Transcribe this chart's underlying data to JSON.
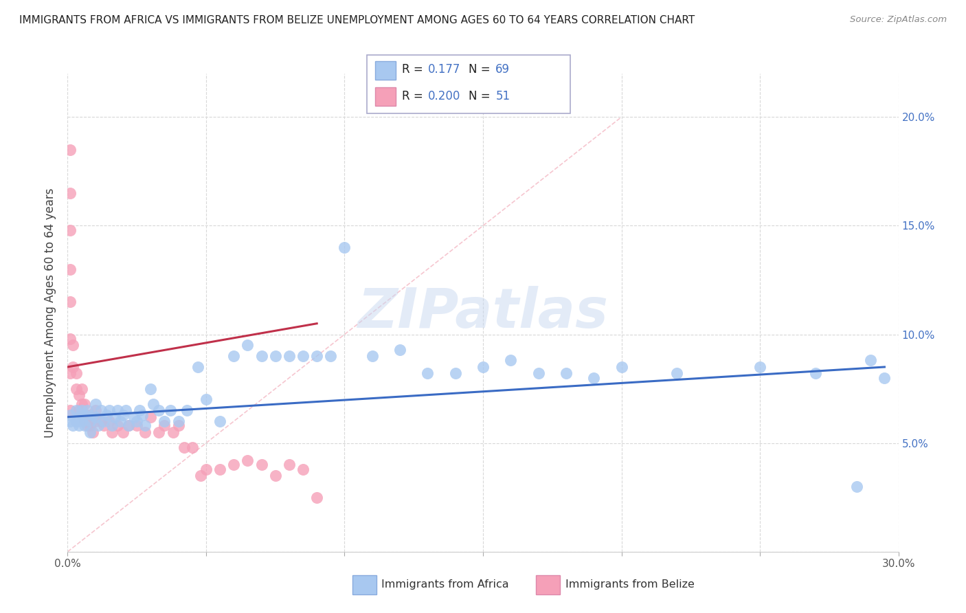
{
  "title": "IMMIGRANTS FROM AFRICA VS IMMIGRANTS FROM BELIZE UNEMPLOYMENT AMONG AGES 60 TO 64 YEARS CORRELATION CHART",
  "source": "Source: ZipAtlas.com",
  "ylabel": "Unemployment Among Ages 60 to 64 years",
  "xlabel_africa": "Immigrants from Africa",
  "xlabel_belize": "Immigrants from Belize",
  "xlim": [
    0.0,
    0.3
  ],
  "ylim": [
    0.0,
    0.22
  ],
  "R_africa": 0.177,
  "N_africa": 69,
  "R_belize": 0.2,
  "N_belize": 51,
  "africa_color": "#a8c8f0",
  "belize_color": "#f5a0b8",
  "trendline_africa_color": "#3a6bc4",
  "trendline_belize_color": "#c0304a",
  "africa_scatter_x": [
    0.001,
    0.001,
    0.002,
    0.003,
    0.003,
    0.004,
    0.004,
    0.005,
    0.005,
    0.006,
    0.006,
    0.007,
    0.008,
    0.008,
    0.009,
    0.01,
    0.01,
    0.011,
    0.012,
    0.013,
    0.014,
    0.015,
    0.016,
    0.017,
    0.018,
    0.019,
    0.02,
    0.021,
    0.022,
    0.024,
    0.025,
    0.026,
    0.027,
    0.028,
    0.03,
    0.031,
    0.033,
    0.035,
    0.037,
    0.04,
    0.043,
    0.047,
    0.05,
    0.055,
    0.06,
    0.065,
    0.07,
    0.075,
    0.08,
    0.085,
    0.09,
    0.095,
    0.1,
    0.11,
    0.12,
    0.13,
    0.14,
    0.15,
    0.16,
    0.17,
    0.18,
    0.19,
    0.2,
    0.22,
    0.25,
    0.27,
    0.285,
    0.29,
    0.295
  ],
  "africa_scatter_y": [
    0.063,
    0.06,
    0.058,
    0.065,
    0.06,
    0.062,
    0.058,
    0.065,
    0.06,
    0.063,
    0.058,
    0.065,
    0.06,
    0.055,
    0.063,
    0.062,
    0.068,
    0.058,
    0.065,
    0.06,
    0.063,
    0.065,
    0.058,
    0.062,
    0.065,
    0.06,
    0.063,
    0.065,
    0.058,
    0.062,
    0.06,
    0.065,
    0.063,
    0.058,
    0.075,
    0.068,
    0.065,
    0.06,
    0.065,
    0.06,
    0.065,
    0.085,
    0.07,
    0.06,
    0.09,
    0.095,
    0.09,
    0.09,
    0.09,
    0.09,
    0.09,
    0.09,
    0.14,
    0.09,
    0.093,
    0.082,
    0.082,
    0.085,
    0.088,
    0.082,
    0.082,
    0.08,
    0.085,
    0.082,
    0.085,
    0.082,
    0.03,
    0.088,
    0.08
  ],
  "belize_scatter_x": [
    0.001,
    0.001,
    0.001,
    0.001,
    0.001,
    0.001,
    0.001,
    0.001,
    0.002,
    0.002,
    0.003,
    0.003,
    0.004,
    0.004,
    0.005,
    0.005,
    0.006,
    0.006,
    0.007,
    0.007,
    0.008,
    0.008,
    0.009,
    0.01,
    0.01,
    0.012,
    0.013,
    0.015,
    0.016,
    0.018,
    0.02,
    0.022,
    0.025,
    0.028,
    0.03,
    0.033,
    0.035,
    0.038,
    0.04,
    0.042,
    0.045,
    0.048,
    0.05,
    0.055,
    0.06,
    0.065,
    0.07,
    0.075,
    0.08,
    0.085,
    0.09
  ],
  "belize_scatter_y": [
    0.185,
    0.165,
    0.148,
    0.13,
    0.115,
    0.098,
    0.082,
    0.065,
    0.095,
    0.085,
    0.082,
    0.075,
    0.072,
    0.065,
    0.075,
    0.068,
    0.068,
    0.06,
    0.063,
    0.058,
    0.063,
    0.058,
    0.055,
    0.065,
    0.06,
    0.06,
    0.058,
    0.06,
    0.055,
    0.058,
    0.055,
    0.058,
    0.058,
    0.055,
    0.062,
    0.055,
    0.058,
    0.055,
    0.058,
    0.048,
    0.048,
    0.035,
    0.038,
    0.038,
    0.04,
    0.042,
    0.04,
    0.035,
    0.04,
    0.038,
    0.025
  ],
  "watermark_text": "ZIPatlas",
  "background_color": "#ffffff",
  "grid_color": "#d8d8d8"
}
